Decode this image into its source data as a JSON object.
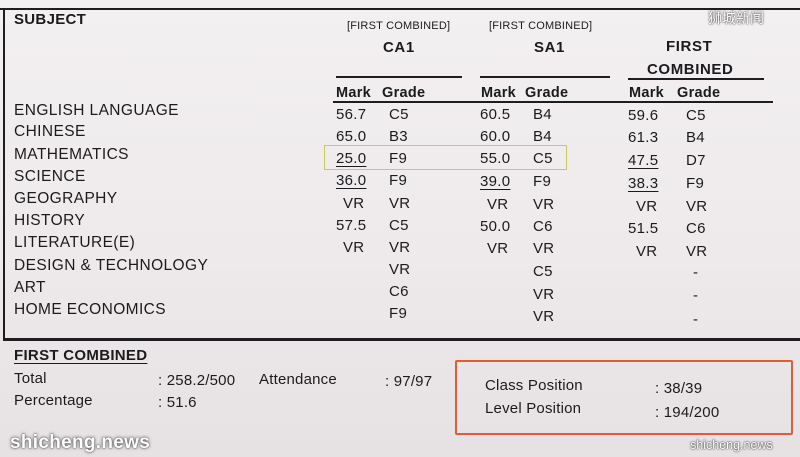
{
  "headers": {
    "subject": "SUBJECT",
    "ca1": {
      "note": "[FIRST COMBINED]",
      "title": "CA1"
    },
    "sa1": {
      "note": "[FIRST COMBINED]",
      "title": "SA1"
    },
    "combined": {
      "title_line1": "FIRST",
      "title_line2": "COMBINED"
    },
    "mark": "Mark",
    "grade": "Grade"
  },
  "subjects": [
    {
      "name": "ENGLISH LANGUAGE",
      "ca1_mark": "56.7",
      "ca1_grade": "C5",
      "sa1_mark": "60.5",
      "sa1_grade": "B4",
      "fc_mark": "59.6",
      "fc_grade": "C5"
    },
    {
      "name": "CHINESE",
      "ca1_mark": "65.0",
      "ca1_grade": "B3",
      "sa1_mark": "60.0",
      "sa1_grade": "B4",
      "fc_mark": "61.3",
      "fc_grade": "B4"
    },
    {
      "name": "MATHEMATICS",
      "ca1_mark": "25.0",
      "ca1_grade": "F9",
      "sa1_mark": "55.0",
      "sa1_grade": "C5",
      "fc_mark": "47.5",
      "fc_grade": "D7"
    },
    {
      "name": "SCIENCE",
      "ca1_mark": "36.0",
      "ca1_grade": "F9",
      "sa1_mark": "39.0",
      "sa1_grade": "F9",
      "fc_mark": "38.3",
      "fc_grade": "F9"
    },
    {
      "name": "GEOGRAPHY",
      "ca1_mark": "VR",
      "ca1_grade": "VR",
      "sa1_mark": "VR",
      "sa1_grade": "VR",
      "fc_mark": "VR",
      "fc_grade": "VR"
    },
    {
      "name": "HISTORY",
      "ca1_mark": "57.5",
      "ca1_grade": "C5",
      "sa1_mark": "50.0",
      "sa1_grade": "C6",
      "fc_mark": "51.5",
      "fc_grade": "C6"
    },
    {
      "name": "LITERATURE(E)",
      "ca1_mark": "VR",
      "ca1_grade": "VR",
      "sa1_mark": "VR",
      "sa1_grade": "VR",
      "fc_mark": "VR",
      "fc_grade": "VR"
    },
    {
      "name": "DESIGN & TECHNOLOGY",
      "ca1_mark": "",
      "ca1_grade": "VR",
      "sa1_mark": "",
      "sa1_grade": "C5",
      "fc_mark": "",
      "fc_grade": "-"
    },
    {
      "name": "ART",
      "ca1_mark": "",
      "ca1_grade": "C6",
      "sa1_mark": "",
      "sa1_grade": "VR",
      "fc_mark": "",
      "fc_grade": "-"
    },
    {
      "name": "HOME ECONOMICS",
      "ca1_mark": "",
      "ca1_grade": "F9",
      "sa1_mark": "",
      "sa1_grade": "VR",
      "fc_mark": "",
      "fc_grade": "-"
    }
  ],
  "summary": {
    "title": "FIRST COMBINED",
    "total_label": "Total",
    "total_value": ": 258.2/500",
    "attendance_label": "Attendance",
    "attendance_value": ": 97/97",
    "percentage_label": "Percentage",
    "percentage_value": ": 51.6",
    "class_position_label": "Class Position",
    "class_position_value": ": 38/39",
    "level_position_label": "Level Position",
    "level_position_value": ": 194/200"
  },
  "watermarks": {
    "top_right": "狮城新闻",
    "bottom_left": "shicheng.news",
    "bottom_right": "shicheng.news"
  },
  "colors": {
    "highlight_yellow": "#c9c95a",
    "highlight_red": "#e25a3a"
  }
}
